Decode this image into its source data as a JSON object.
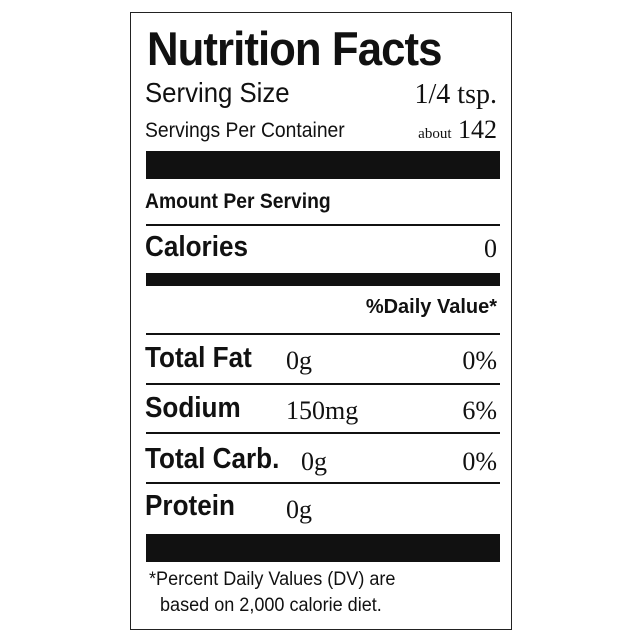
{
  "title": "Nutrition Facts",
  "serving_size": {
    "label": "Serving Size",
    "value": "1/4 tsp."
  },
  "servings_per_container": {
    "label": "Servings Per Container",
    "prefix": "about",
    "value": "142"
  },
  "amount_per_serving": "Amount Per Serving",
  "calories": {
    "label": "Calories",
    "value": "0"
  },
  "daily_value_header": "%Daily Value*",
  "nutrients": [
    {
      "name": "Total Fat",
      "amount": "0g",
      "dv": "0%"
    },
    {
      "name": "Sodium",
      "amount": "150mg",
      "dv": "6%"
    },
    {
      "name": "Total Carb.",
      "amount": "0g",
      "dv": "0%"
    },
    {
      "name": "Protein",
      "amount": "0g",
      "dv": ""
    }
  ],
  "footnote": {
    "line1": "*Percent Daily Values (DV) are",
    "line2": "based on 2,000 calorie diet."
  }
}
